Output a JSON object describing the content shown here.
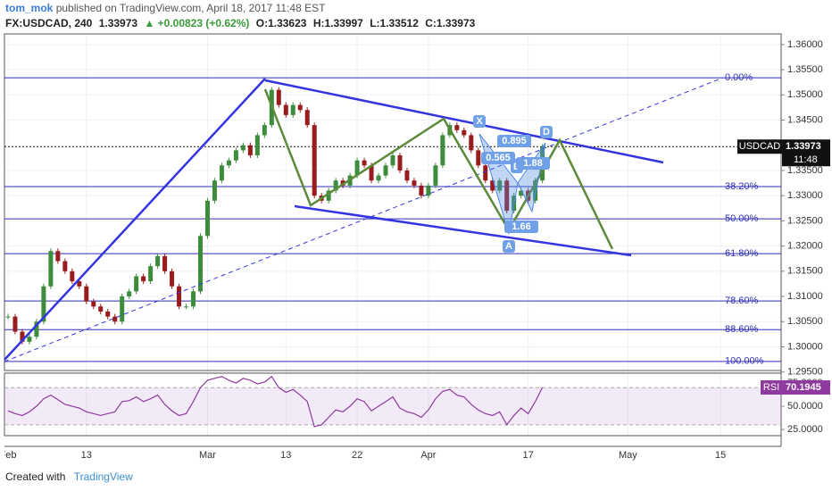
{
  "header": {
    "author": "tom_mok",
    "published": "published on TradingView.com, April 18, 2017 11:48 EST",
    "symbol": "FX:USDCAD, 240",
    "last": "1.33973",
    "change": "▲ +0.00823 (+0.62%)",
    "open": "O:1.33623",
    "high": "H:1.33997",
    "low": "L:1.33512",
    "close": "C:1.33973"
  },
  "chart_data": {
    "type": "candlestick",
    "close": [
      1.306,
      1.303,
      1.301,
      1.302,
      1.305,
      1.312,
      1.319,
      1.317,
      1.315,
      1.313,
      1.312,
      1.309,
      1.308,
      1.307,
      1.306,
      1.305,
      1.31,
      1.311,
      1.314,
      1.313,
      1.316,
      1.318,
      1.315,
      1.312,
      1.308,
      1.308,
      1.311,
      1.322,
      1.329,
      1.333,
      1.336,
      1.337,
      1.339,
      1.34,
      1.338,
      1.342,
      1.344,
      1.351,
      1.348,
      1.346,
      1.348,
      1.347,
      1.344,
      1.33,
      1.329,
      1.331,
      1.333,
      1.332,
      1.334,
      1.337,
      1.336,
      1.333,
      1.334,
      1.336,
      1.338,
      1.335,
      1.333,
      1.332,
      1.33,
      1.332,
      1.336,
      1.342,
      1.344,
      1.343,
      1.342,
      1.339,
      1.336,
      1.333,
      1.331,
      1.333,
      1.327,
      1.33,
      1.331,
      1.329,
      1.333,
      1.3397
    ],
    "up_color": "#3c8c3c",
    "down_color": "#9a1b1b",
    "xlim": [
      -0.5,
      108.5
    ],
    "xticks": [
      {
        "value": 0,
        "label": "Feb"
      },
      {
        "value": 11,
        "label": "13"
      },
      {
        "value": 28,
        "label": "Mar"
      },
      {
        "value": 39,
        "label": "13"
      },
      {
        "value": 49,
        "label": "22"
      },
      {
        "value": 59,
        "label": "Apr"
      },
      {
        "value": 73,
        "label": "17"
      },
      {
        "value": 87,
        "label": "May"
      },
      {
        "value": 100,
        "label": "15"
      }
    ],
    "ylim": [
      1.2953,
      1.3621
    ],
    "yticks": [
      {
        "value": 1.36,
        "label": "1.36000"
      },
      {
        "value": 1.355,
        "label": "1.35500"
      },
      {
        "value": 1.35,
        "label": "1.35000"
      },
      {
        "value": 1.345,
        "label": "1.34500"
      },
      {
        "value": 1.335,
        "label": "1.33500"
      },
      {
        "value": 1.33,
        "label": "1.33000"
      },
      {
        "value": 1.325,
        "label": "1.32500"
      },
      {
        "value": 1.32,
        "label": "1.32000"
      },
      {
        "value": 1.315,
        "label": "1.31500"
      },
      {
        "value": 1.31,
        "label": "1.31000"
      },
      {
        "value": 1.305,
        "label": "1.30500"
      },
      {
        "value": 1.3,
        "label": "1.30000"
      },
      {
        "value": 1.295,
        "label": "1.29500"
      }
    ],
    "grid": true,
    "last_price": {
      "name": "USDCAD",
      "value": 1.33973,
      "label": "1.33973",
      "time": "11:48"
    },
    "fib_color": "#2e2eb8",
    "fib_levels": [
      {
        "label": "0.00%",
        "price": 1.3534
      },
      {
        "label": "38.20%",
        "price": 1.3318
      },
      {
        "label": "50.00%",
        "price": 1.3254
      },
      {
        "label": "61.80%",
        "price": 1.3185
      },
      {
        "label": "78.60%",
        "price": 1.3091
      },
      {
        "label": "88.60%",
        "price": 1.3034
      },
      {
        "label": "100.00%",
        "price": 1.2971
      }
    ],
    "pattern": {
      "points": [
        "X",
        "A",
        "B",
        "C",
        "D"
      ],
      "ratios": [
        "0.895",
        "0.565",
        "1.88",
        "1.66"
      ]
    }
  },
  "rsi": {
    "type": "line",
    "name": "RSI",
    "color": "#8e3a9e",
    "values": [
      45,
      42,
      40,
      44,
      50,
      58,
      62,
      57,
      52,
      50,
      48,
      44,
      42,
      40,
      42,
      44,
      55,
      56,
      60,
      55,
      58,
      62,
      52,
      45,
      40,
      42,
      55,
      70,
      78,
      80,
      82,
      78,
      75,
      80,
      78,
      74,
      76,
      82,
      70,
      65,
      68,
      62,
      55,
      28,
      30,
      38,
      46,
      44,
      50,
      58,
      55,
      45,
      50,
      55,
      60,
      48,
      44,
      42,
      38,
      46,
      58,
      66,
      68,
      62,
      60,
      52,
      46,
      42,
      40,
      44,
      30,
      40,
      48,
      42,
      55,
      70.1945
    ],
    "ylim": [
      18.3,
      85.6
    ],
    "yticks": [
      {
        "value": 75,
        "label": "75.0000"
      },
      {
        "value": 50,
        "label": "50.0000"
      },
      {
        "value": 25,
        "label": "25.0000"
      }
    ],
    "band": [
      30,
      70
    ]
  },
  "footer": {
    "created": "Created with",
    "brand": "TradingView"
  }
}
